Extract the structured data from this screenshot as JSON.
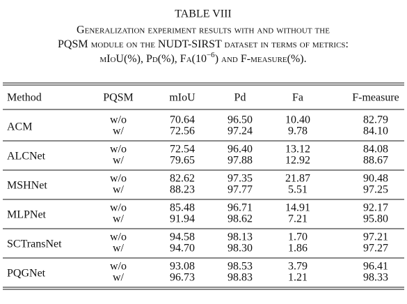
{
  "caption": {
    "label": "TABLE VIII",
    "line1": "Generalization experiment results with and without the",
    "line2": [
      "PQSM",
      "module on the",
      "NUDT-SIRST",
      "dataset in terms of metrics:"
    ],
    "line3": [
      "mIoU(%), Pd(%), Fa(10",
      "−6",
      ") and F-measure(%)."
    ]
  },
  "table": {
    "header": [
      "Method",
      "PQSM",
      "mIoU",
      "Pd",
      "Fa",
      "F-measure"
    ],
    "groups": [
      {
        "method": "ACM",
        "rows": [
          [
            "w/o",
            "70.64",
            "96.50",
            "10.40",
            "82.79"
          ],
          [
            "w/",
            "72.56",
            "97.24",
            "9.78",
            "84.10"
          ]
        ]
      },
      {
        "method": "ALCNet",
        "rows": [
          [
            "w/o",
            "72.54",
            "96.40",
            "13.12",
            "84.08"
          ],
          [
            "w/",
            "79.65",
            "97.88",
            "12.92",
            "88.67"
          ]
        ]
      },
      {
        "method": "MSHNet",
        "rows": [
          [
            "w/o",
            "82.62",
            "97.35",
            "21.87",
            "90.48"
          ],
          [
            "w/",
            "88.23",
            "97.77",
            "5.51",
            "97.25"
          ]
        ]
      },
      {
        "method": "MLPNet",
        "rows": [
          [
            "w/o",
            "85.48",
            "96.71",
            "14.91",
            "92.17"
          ],
          [
            "w/",
            "91.94",
            "98.62",
            "7.21",
            "95.80"
          ]
        ]
      },
      {
        "method": "SCTransNet",
        "rows": [
          [
            "w/o",
            "94.58",
            "98.13",
            "1.70",
            "97.21"
          ],
          [
            "w/",
            "94.70",
            "98.30",
            "1.86",
            "97.27"
          ]
        ]
      },
      {
        "method": "PQGNet",
        "rows": [
          [
            "w/o",
            "93.08",
            "98.53",
            "3.79",
            "96.41"
          ],
          [
            "w/",
            "96.73",
            "98.83",
            "1.21",
            "98.33"
          ]
        ]
      }
    ]
  }
}
